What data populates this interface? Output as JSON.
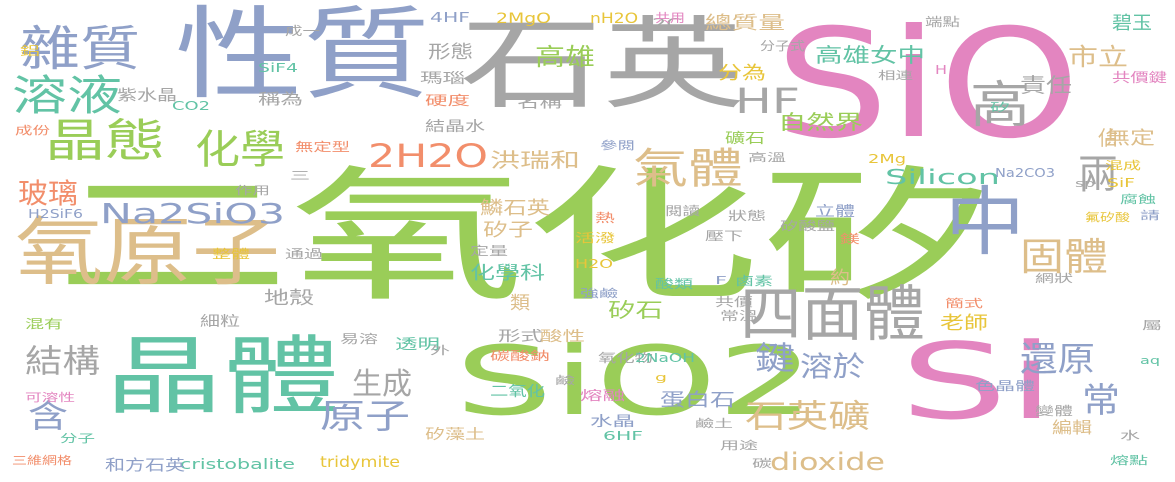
{
  "colors": {
    "green": "#9ACD58",
    "pink": "#E385C0",
    "slate": "#8FA0C8",
    "gray": "#A6A6A6",
    "tan": "#DDBE8A",
    "teal": "#62C3A5",
    "orange": "#F28E6B",
    "yellow": "#E8C53A"
  },
  "words": [
    "二氧化矽",
    "SiO",
    "性質",
    "石英",
    "氧原子",
    "晶體",
    "SiO2",
    "Si",
    "中",
    "四面體",
    "雜質",
    "溶液",
    "晶態",
    "化學",
    "HF",
    "高",
    "氣體",
    "2H2O",
    "兩",
    "固體",
    "玻璃",
    "Na2SiO3",
    "結構",
    "生成",
    "鍵",
    "溶於",
    "還原",
    "常",
    "原子",
    "石英礦",
    "含",
    "dioxide",
    "高雄",
    "高雄女中",
    "市立",
    "責任",
    "自然界",
    "Silicon",
    "洪瑞和",
    "佔",
    "分為",
    "總質量",
    "形態",
    "無定",
    "老師",
    "化學科",
    "類",
    "矽石",
    "鱗石英",
    "矽子",
    "約",
    "碧玉",
    "立體",
    "共價鍵",
    "cristobalite",
    "tridymite",
    "和方石英",
    "矽藻土",
    "蛋白石",
    "編輯",
    "紫水晶",
    "稱為",
    "瑪瑙",
    "名稱",
    "結晶水",
    "地殼",
    "細粒",
    "透明",
    "形式",
    "酸性",
    "碳酸鈉",
    "氧化物",
    "2NaOH",
    "水晶",
    "6HF",
    "二氧化",
    "熔融",
    "硬度",
    "無定型",
    "SiF4",
    "CO2",
    "2MgO",
    "nH2O",
    "2C",
    "4HF",
    "成一",
    "共用",
    "分子式",
    "端點",
    "相連",
    "H",
    "Na2CO3",
    "2Mg",
    "SiF",
    "混成",
    "腐蝕",
    "sp",
    "氟矽酸",
    "請",
    "H2SiF6",
    "閱讀",
    "矽酸鹽",
    "狀態",
    "壓下",
    "鎂",
    "活潑",
    "熱",
    "整體",
    "通過",
    "定量",
    "H2O",
    "強鹼",
    "F",
    "鹵素",
    "網狀",
    "酸類",
    "共價",
    "簡式",
    "常溫",
    "色晶體",
    "變體",
    "可溶性",
    "分子",
    "三維網格",
    "用途",
    "碳",
    "水",
    "熔點",
    "易溶",
    "外",
    "屬",
    "aq",
    "鹼",
    "g",
    "混有",
    "參閱",
    "成份",
    "鋁",
    "作用",
    "三",
    "鹼土",
    "礦石",
    "高溫",
    "矽"
  ]
}
